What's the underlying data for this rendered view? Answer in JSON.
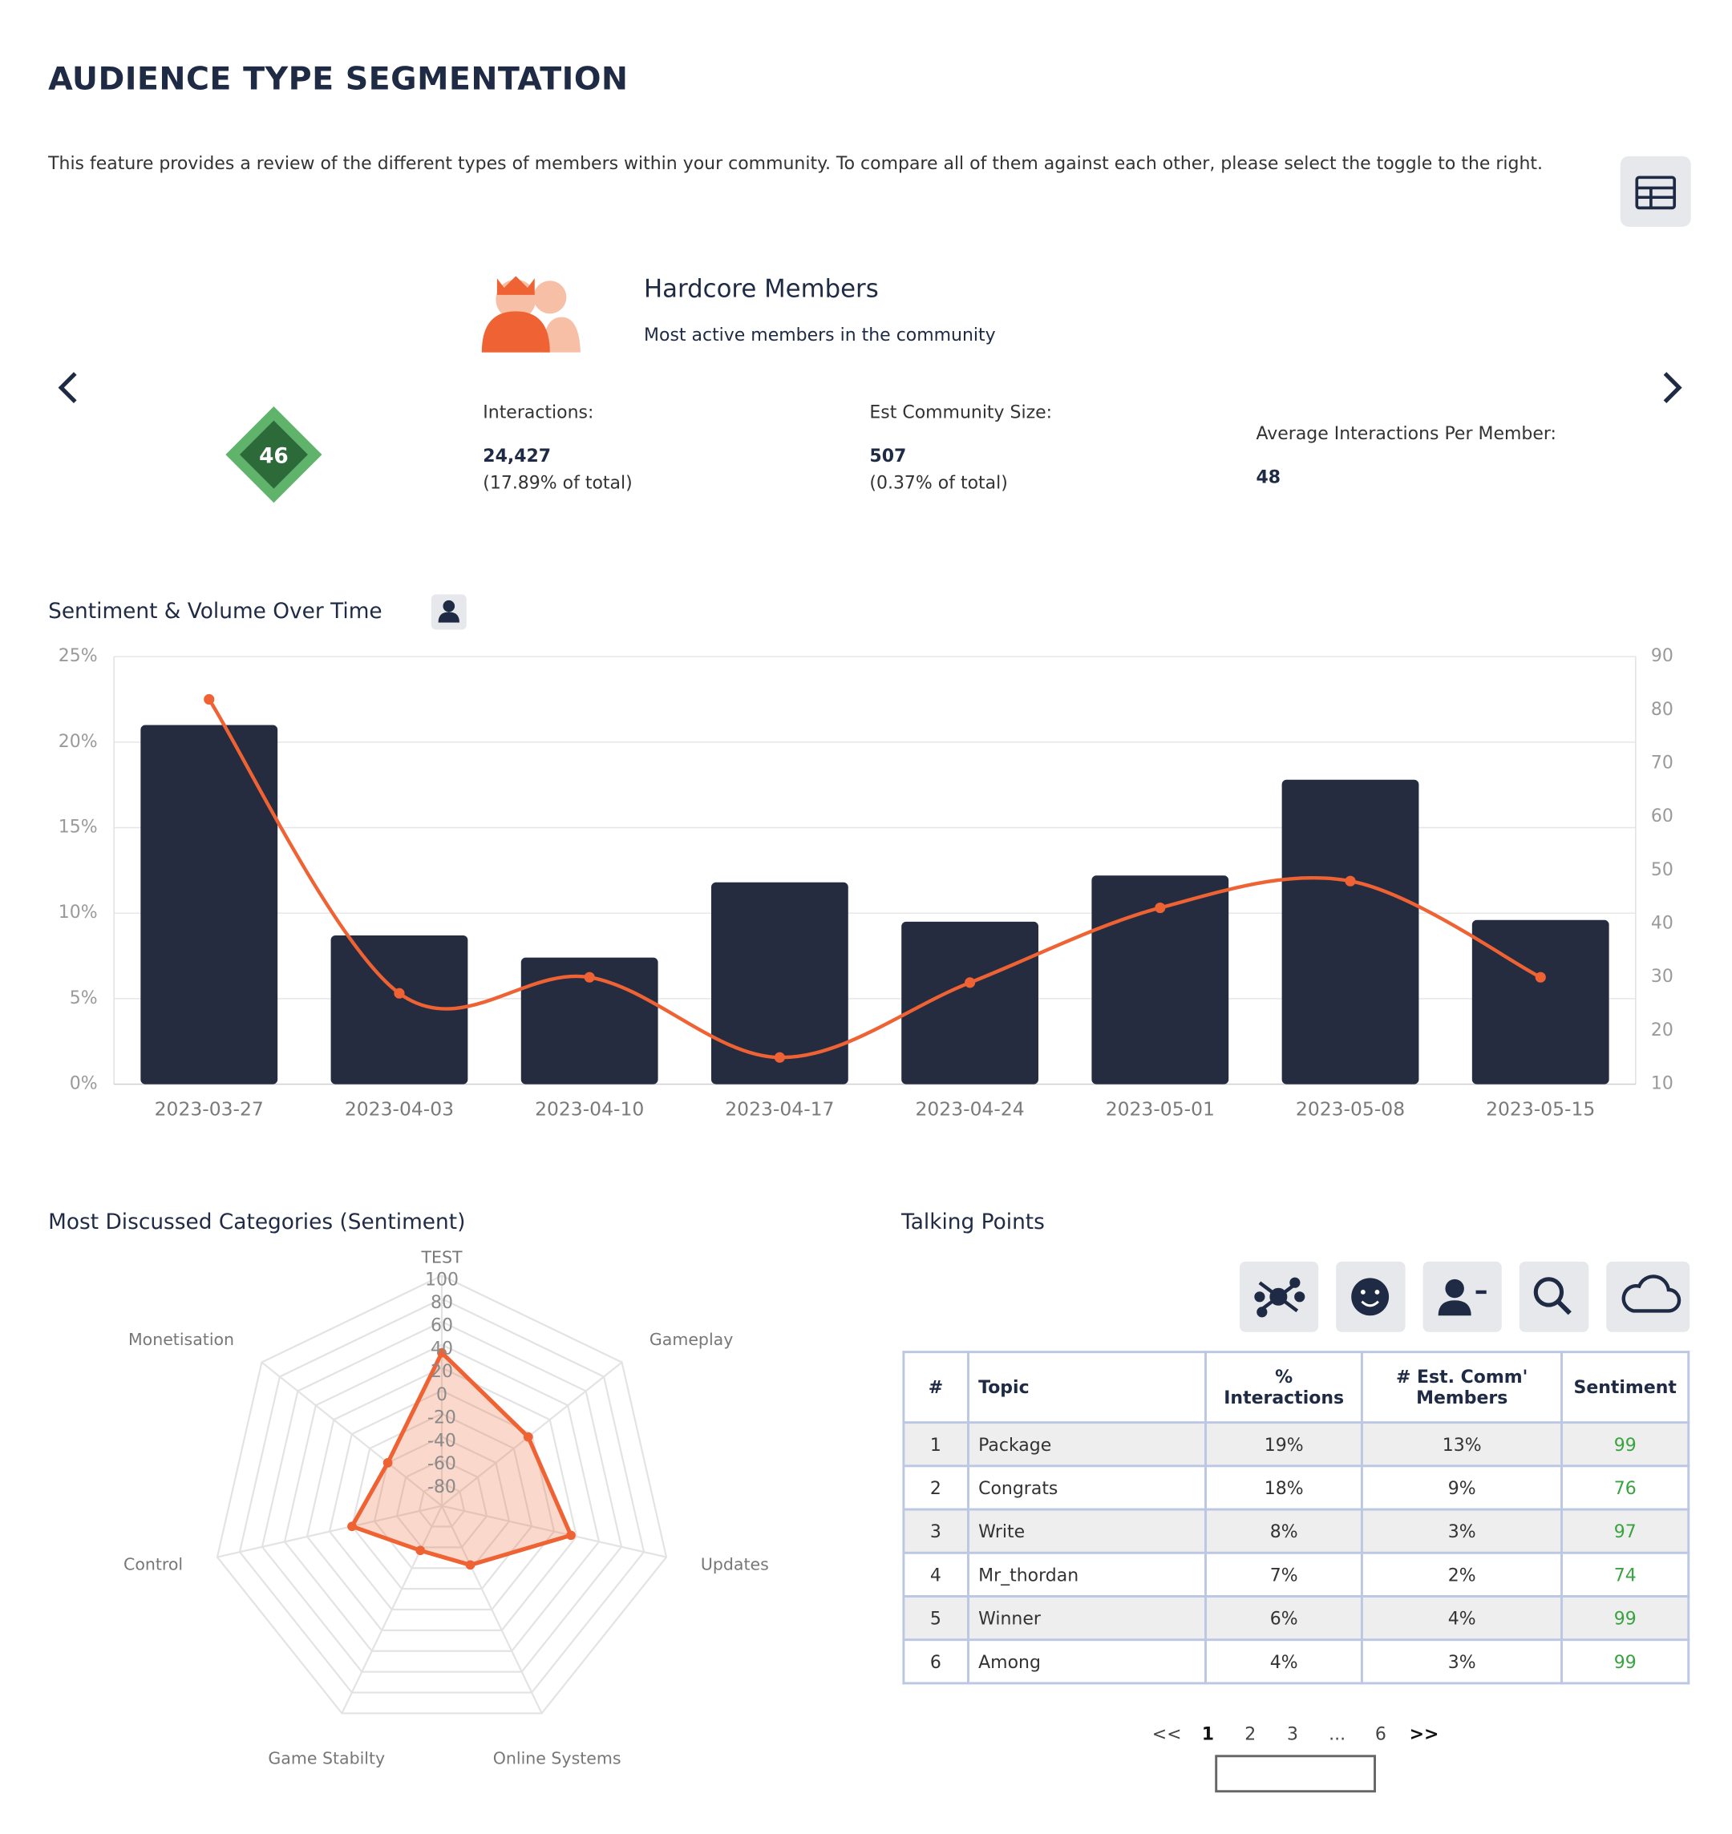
{
  "header": {
    "title": "AUDIENCE TYPE SEGMENTATION",
    "description": "This feature provides a review of the different types of members within your community. To compare all of them against each other, please select the toggle to the right."
  },
  "profile": {
    "name": "Hardcore Members",
    "subtitle": "Most active members in the community",
    "score": 46,
    "stats": [
      {
        "label": "Interactions:",
        "value": "24,427",
        "share": "(17.89% of total)"
      },
      {
        "label": "Est Community Size:",
        "value": "507",
        "share": "(0.37% of total)"
      },
      {
        "label": "Average Interactions Per Member:",
        "value": "48"
      }
    ]
  },
  "chart_data": [
    {
      "type": "bar",
      "title": "Sentiment & Volume Over Time",
      "categories": [
        "2023-03-27",
        "2023-04-03",
        "2023-04-10",
        "2023-04-17",
        "2023-04-24",
        "2023-05-01",
        "2023-05-08",
        "2023-05-15"
      ],
      "series": [
        {
          "type": "bar",
          "color": "#262c40",
          "values": [
            21.0,
            8.7,
            7.4,
            11.8,
            9.5,
            12.2,
            17.8,
            9.6
          ]
        },
        {
          "type": "line",
          "axis": "y2",
          "color": "#ef6234",
          "values": [
            82,
            27,
            30,
            15,
            29,
            43,
            48,
            30
          ]
        }
      ],
      "ylim": [
        0,
        25
      ],
      "yticks": [
        {
          "value": 0,
          "label": "0%"
        },
        {
          "value": 5,
          "label": "5%"
        },
        {
          "value": 10,
          "label": "10%"
        },
        {
          "value": 15,
          "label": "15%"
        },
        {
          "value": 20,
          "label": "20%"
        },
        {
          "value": 25,
          "label": "25%"
        }
      ],
      "y2lim": [
        10,
        90
      ],
      "y2ticks": [
        10,
        20,
        30,
        40,
        50,
        60,
        70,
        80,
        90
      ],
      "grid": true
    },
    {
      "type": "radar",
      "title": "Most Discussed Categories (Sentiment)",
      "categories": [
        "TEST",
        "Gameplay",
        "Updates",
        "Online Systems",
        "Game Stabilty",
        "Control",
        "Monetisation"
      ],
      "series": [
        {
          "color": "#ef6234",
          "values": [
            33,
            -4,
            15,
            -43,
            -57,
            -20,
            -40
          ]
        }
      ],
      "ylim": [
        -100,
        100
      ],
      "yticks": [
        -80,
        -60,
        -40,
        -20,
        0,
        20,
        40,
        60,
        80,
        100
      ],
      "grid": true
    }
  ],
  "talking_points": {
    "title": "Talking Points",
    "columns": [
      "#",
      "Topic",
      "% Interactions",
      "# Est. Comm' Members",
      "Sentiment"
    ],
    "rows": [
      [
        1,
        "Package",
        "19%",
        "13%",
        99
      ],
      [
        2,
        "Congrats",
        "18%",
        "9%",
        76
      ],
      [
        3,
        "Write",
        "8%",
        "3%",
        97
      ],
      [
        4,
        "Mr_thordan",
        "7%",
        "2%",
        74
      ],
      [
        5,
        "Winner",
        "6%",
        "4%",
        99
      ],
      [
        6,
        "Among",
        "4%",
        "3%",
        99
      ]
    ],
    "pagination": [
      "<<",
      "1",
      "2",
      "3",
      "...",
      "6",
      ">>"
    ]
  }
}
